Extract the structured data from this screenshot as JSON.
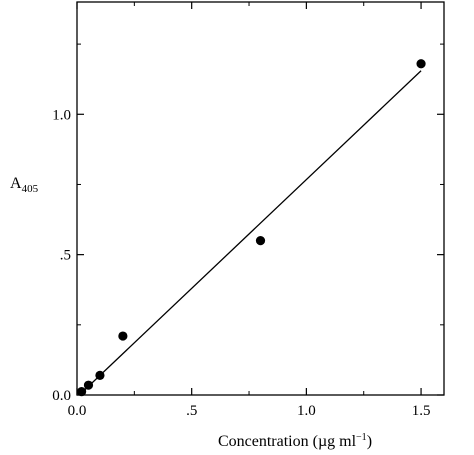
{
  "chart_data": {
    "type": "scatter",
    "title": "",
    "xlabel": {
      "prefix": "Concentration (",
      "unit_main": "µg ml",
      "unit_exp": "−1",
      "suffix": ")"
    },
    "ylabel": {
      "base": "A",
      "subscript": "405"
    },
    "xlim": [
      0,
      1.6
    ],
    "ylim": [
      0,
      1.4
    ],
    "grid": false,
    "legend": "none",
    "x_ticks": [
      {
        "value": 0,
        "label": "0.0"
      },
      {
        "value": 0.5,
        "label": ".5"
      },
      {
        "value": 1.0,
        "label": "1.0"
      },
      {
        "value": 1.5,
        "label": "1.5"
      }
    ],
    "y_ticks": [
      {
        "value": 0,
        "label": "0.0"
      },
      {
        "value": 0.5,
        "label": ".5"
      },
      {
        "value": 1.0,
        "label": "1.0"
      }
    ],
    "x_minor": [
      0.25,
      0.75,
      1.25
    ],
    "y_minor": [
      0.25,
      0.75,
      1.25
    ],
    "points": [
      {
        "x": 0.02,
        "y": 0.012
      },
      {
        "x": 0.05,
        "y": 0.035
      },
      {
        "x": 0.1,
        "y": 0.07
      },
      {
        "x": 0.2,
        "y": 0.21
      },
      {
        "x": 0.8,
        "y": 0.55
      },
      {
        "x": 1.5,
        "y": 1.18
      }
    ],
    "fit_line": {
      "x1": 0.01,
      "y1": 0.0,
      "x2": 1.5,
      "y2": 1.155
    }
  }
}
